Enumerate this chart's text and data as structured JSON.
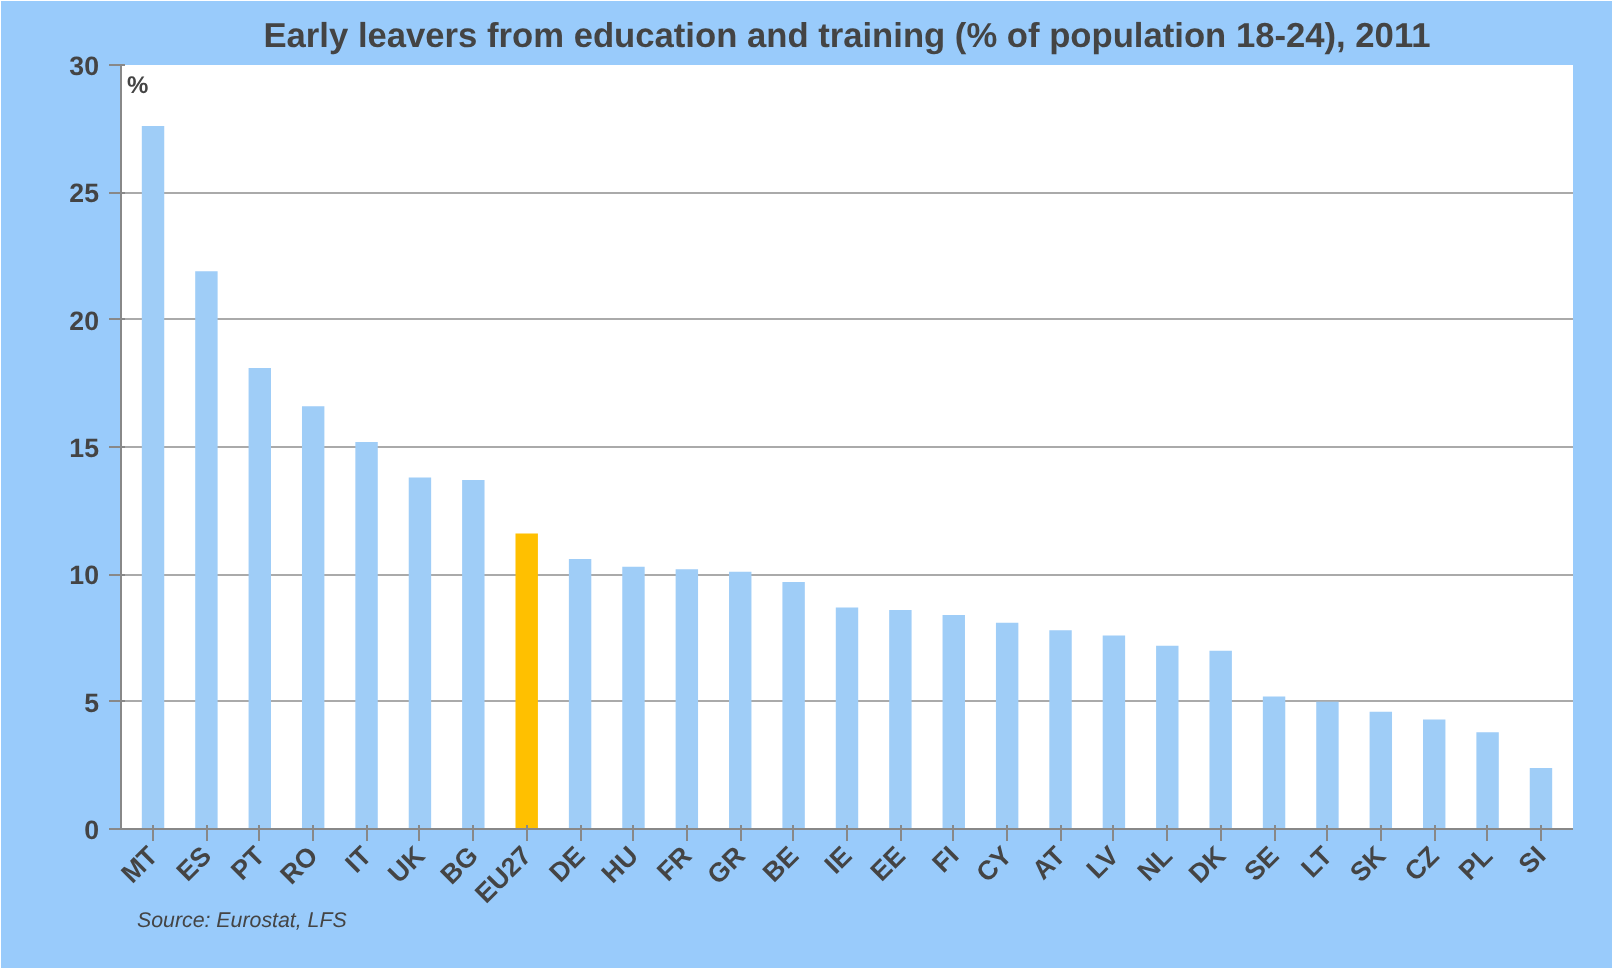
{
  "chart_data": {
    "type": "bar",
    "title": "Early leavers from education and training (% of population 18-24), 2011",
    "ylabel": "%",
    "categories": [
      "MT",
      "ES",
      "PT",
      "RO",
      "IT",
      "UK",
      "BG",
      "EU27",
      "DE",
      "HU",
      "FR",
      "GR",
      "BE",
      "IE",
      "EE",
      "FI",
      "CY",
      "AT",
      "LV",
      "NL",
      "DK",
      "SE",
      "LT",
      "SK",
      "CZ",
      "PL",
      "SI"
    ],
    "values": [
      27.6,
      21.9,
      18.1,
      16.6,
      15.2,
      13.8,
      13.7,
      11.6,
      10.6,
      10.3,
      10.2,
      10.1,
      9.7,
      8.7,
      8.6,
      8.4,
      8.1,
      7.8,
      7.6,
      7.2,
      7.0,
      5.2,
      5.0,
      4.6,
      4.3,
      3.8,
      2.4
    ],
    "colors": [
      "#9fcdf7",
      "#9fcdf7",
      "#9fcdf7",
      "#9fcdf7",
      "#9fcdf7",
      "#9fcdf7",
      "#9fcdf7",
      "#ffc000",
      "#9fcdf7",
      "#9fcdf7",
      "#9fcdf7",
      "#9fcdf7",
      "#9fcdf7",
      "#9fcdf7",
      "#9fcdf7",
      "#9fcdf7",
      "#9fcdf7",
      "#9fcdf7",
      "#9fcdf7",
      "#9fcdf7",
      "#9fcdf7",
      "#9fcdf7",
      "#9fcdf7",
      "#9fcdf7",
      "#9fcdf7",
      "#9fcdf7",
      "#9fcdf7"
    ],
    "ylim": [
      0,
      30
    ],
    "yticks": [
      0,
      5,
      10,
      15,
      20,
      25,
      30
    ],
    "grid": "y",
    "annotations": [
      "Source: Eurostat, LFS"
    ]
  }
}
